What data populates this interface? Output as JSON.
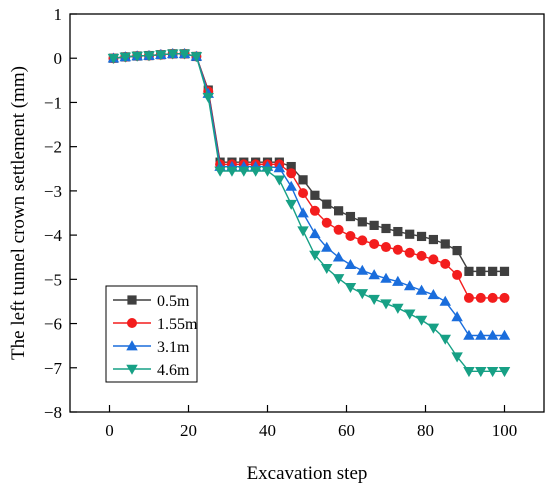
{
  "chart_data": {
    "type": "line",
    "xlabel": "Excavation step",
    "ylabel": "The left tunnel crown settlement (mm)",
    "xlim": [
      -10,
      110
    ],
    "ylim": [
      -8,
      1
    ],
    "xticks": [
      0,
      20,
      40,
      60,
      80,
      100
    ],
    "yticks": [
      1,
      0,
      -1,
      -2,
      -3,
      -4,
      -5,
      -6,
      -7,
      -8
    ],
    "grid": false,
    "legend_position": "bottom-left",
    "x": [
      1,
      4,
      7,
      10,
      13,
      16,
      19,
      22,
      25,
      28,
      31,
      34,
      37,
      40,
      43,
      46,
      49,
      52,
      55,
      58,
      61,
      64,
      67,
      70,
      73,
      76,
      79,
      82,
      85,
      88,
      91,
      94,
      97,
      100
    ],
    "series": [
      {
        "name": "0.5m",
        "color": "#3f3f3f",
        "marker": "square",
        "values": [
          0.0,
          0.03,
          0.05,
          0.06,
          0.08,
          0.1,
          0.1,
          0.04,
          -0.72,
          -2.35,
          -2.35,
          -2.35,
          -2.35,
          -2.35,
          -2.35,
          -2.45,
          -2.75,
          -3.1,
          -3.3,
          -3.45,
          -3.58,
          -3.7,
          -3.78,
          -3.85,
          -3.92,
          -3.98,
          -4.03,
          -4.1,
          -4.2,
          -4.35,
          -4.82,
          -4.82,
          -4.82,
          -4.82
        ]
      },
      {
        "name": "1.55m",
        "color": "#f31d1d",
        "marker": "circle",
        "values": [
          0.0,
          0.03,
          0.05,
          0.06,
          0.08,
          0.1,
          0.1,
          0.04,
          -0.75,
          -2.4,
          -2.4,
          -2.4,
          -2.4,
          -2.4,
          -2.4,
          -2.6,
          -3.05,
          -3.45,
          -3.72,
          -3.88,
          -4.02,
          -4.12,
          -4.2,
          -4.27,
          -4.33,
          -4.4,
          -4.47,
          -4.55,
          -4.65,
          -4.9,
          -5.42,
          -5.42,
          -5.42,
          -5.42
        ]
      },
      {
        "name": "3.1m",
        "color": "#1a6ddc",
        "marker": "triangle-up",
        "values": [
          0.0,
          0.03,
          0.05,
          0.06,
          0.08,
          0.1,
          0.1,
          0.04,
          -0.8,
          -2.45,
          -2.45,
          -2.45,
          -2.45,
          -2.45,
          -2.48,
          -2.9,
          -3.5,
          -3.97,
          -4.28,
          -4.5,
          -4.67,
          -4.8,
          -4.9,
          -4.98,
          -5.05,
          -5.15,
          -5.25,
          -5.35,
          -5.5,
          -5.85,
          -6.27,
          -6.27,
          -6.27,
          -6.27
        ]
      },
      {
        "name": "4.6m",
        "color": "#17a085",
        "marker": "triangle-down",
        "values": [
          0.0,
          0.03,
          0.05,
          0.06,
          0.08,
          0.1,
          0.1,
          0.04,
          -0.88,
          -2.55,
          -2.55,
          -2.55,
          -2.55,
          -2.55,
          -2.75,
          -3.3,
          -3.9,
          -4.45,
          -4.75,
          -4.98,
          -5.18,
          -5.32,
          -5.45,
          -5.55,
          -5.65,
          -5.78,
          -5.92,
          -6.1,
          -6.35,
          -6.75,
          -7.08,
          -7.08,
          -7.08,
          -7.08
        ]
      }
    ]
  }
}
